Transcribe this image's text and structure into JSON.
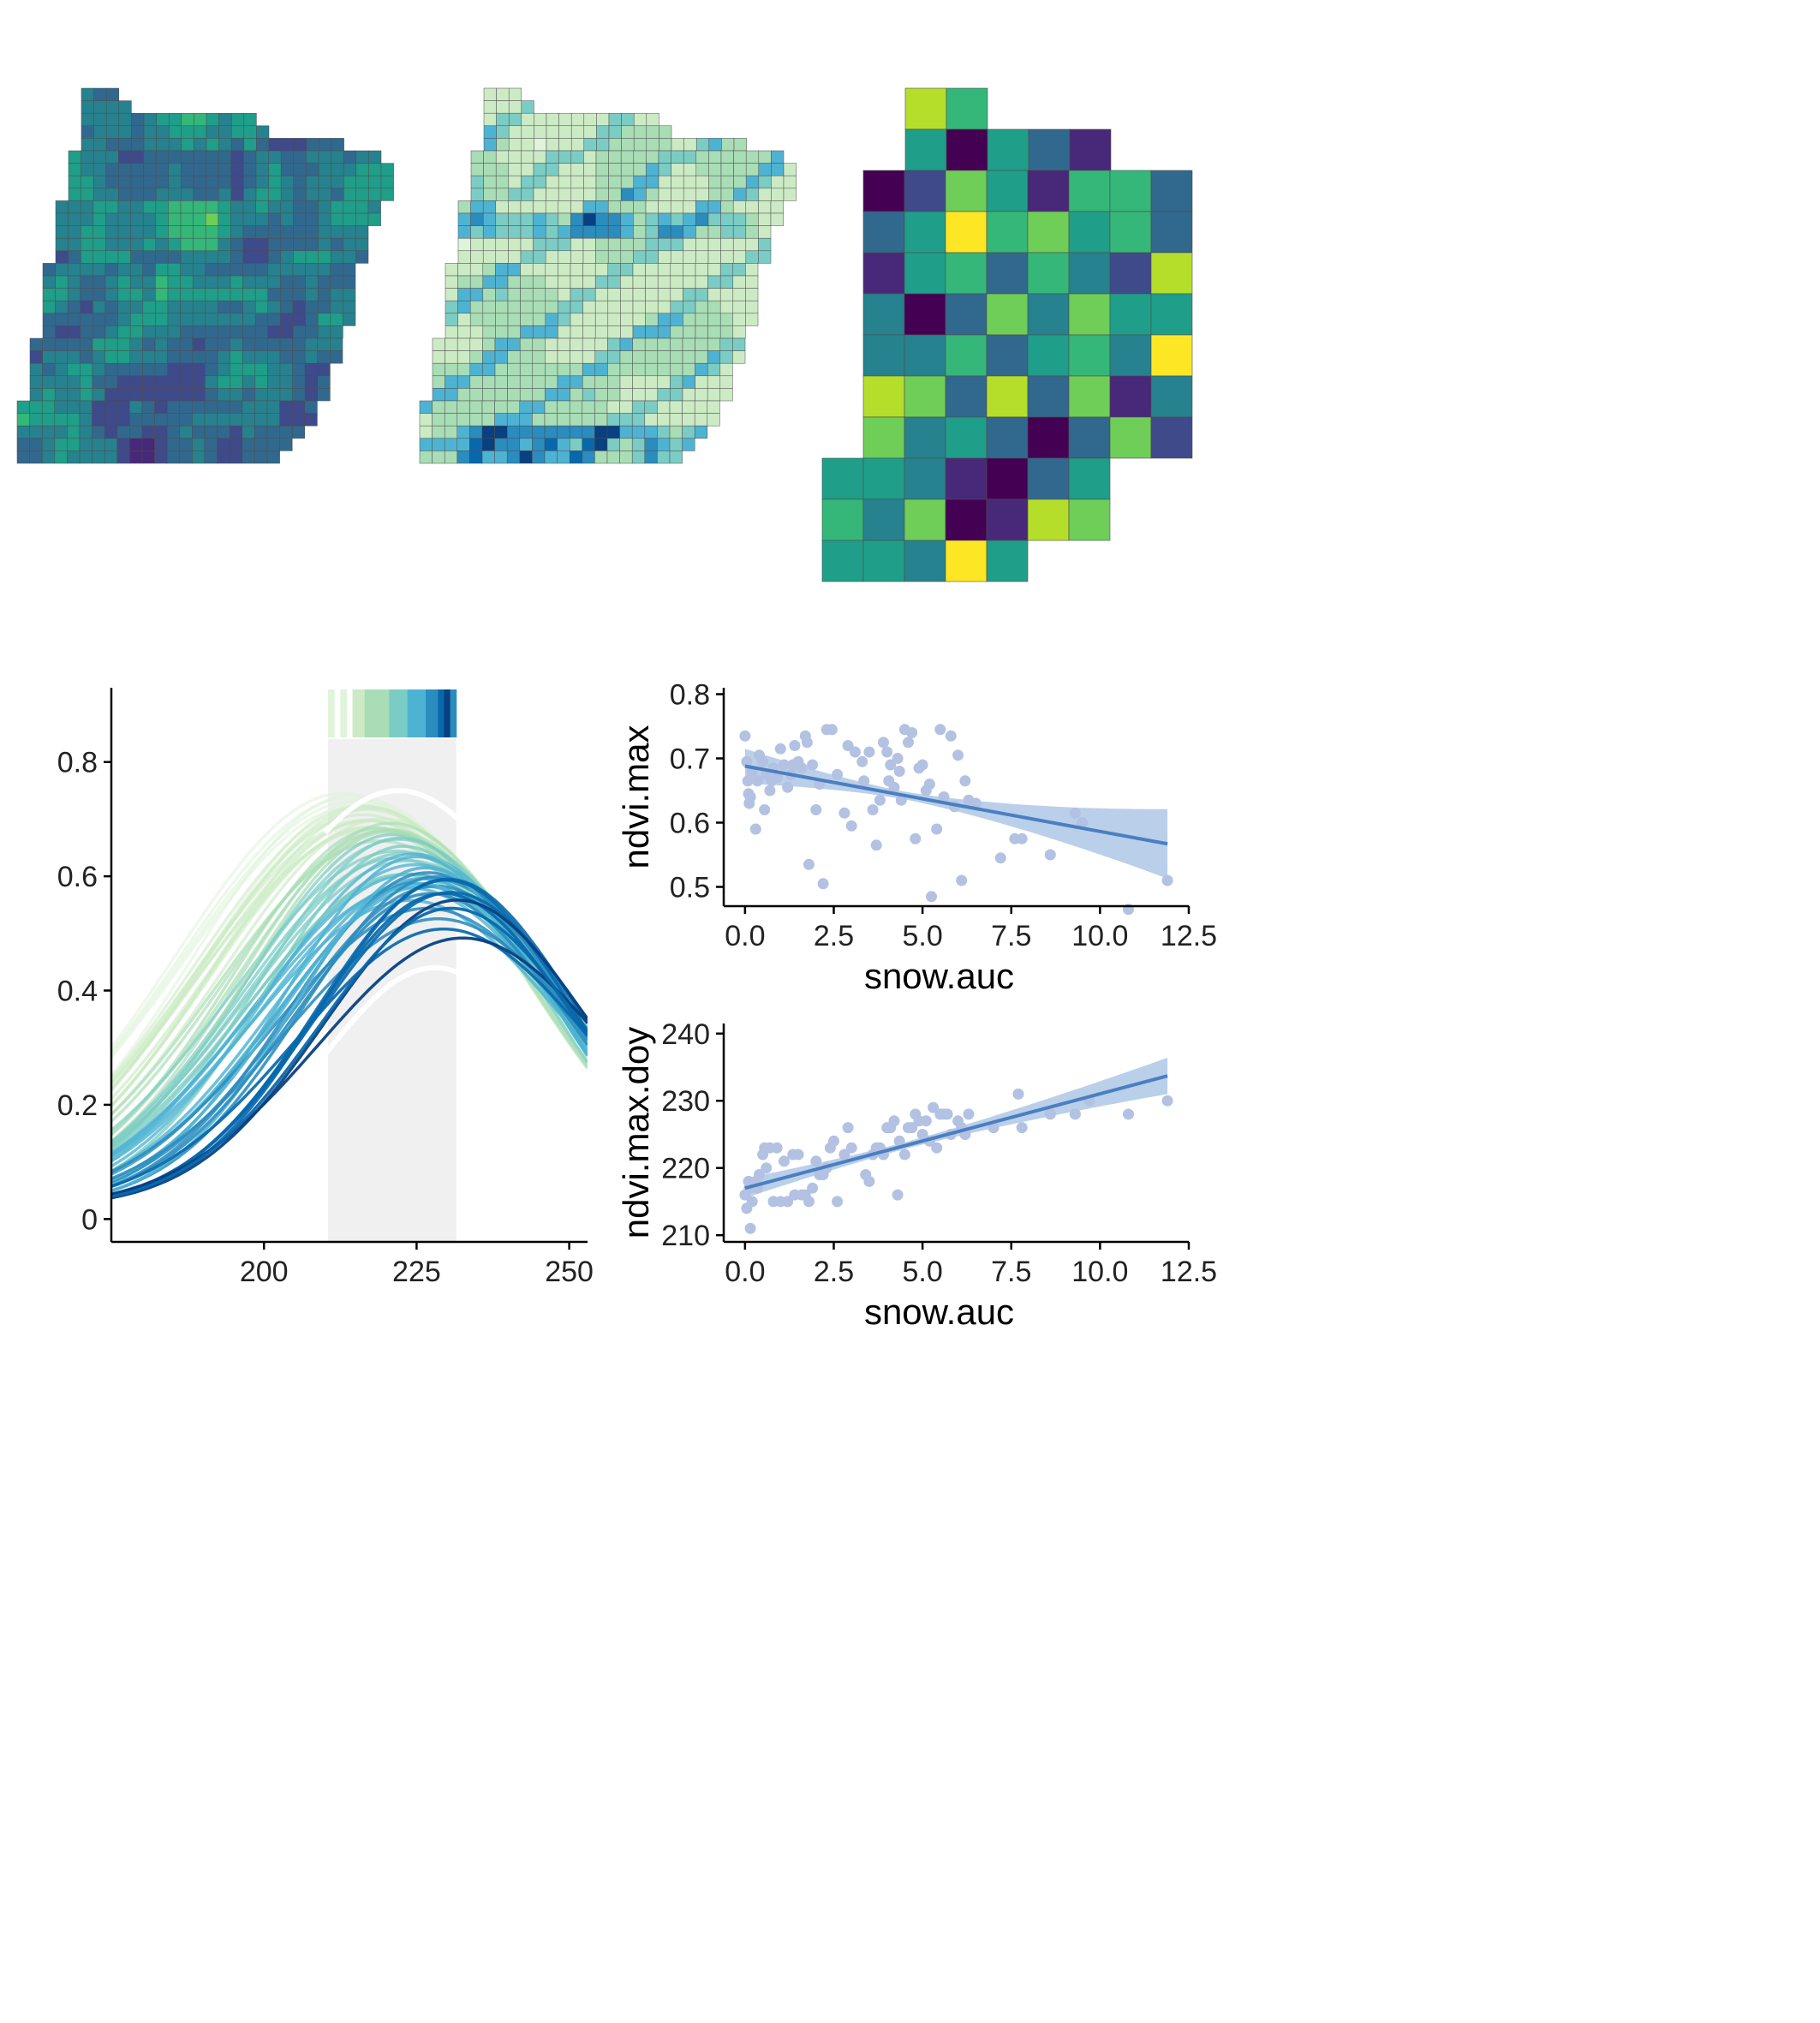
{
  "colors": {
    "viridis": [
      "#440154",
      "#482878",
      "#3e4a89",
      "#31688e",
      "#26828e",
      "#1f9e89",
      "#35b779",
      "#6ece58",
      "#b5de2b",
      "#fde725"
    ],
    "gnbu": [
      "#e0f3db",
      "#ccebc5",
      "#a8ddb5",
      "#7bccc4",
      "#4eb3d3",
      "#2b8cbe",
      "#0868ac",
      "#084081"
    ],
    "fit_line": "#4a7fc1",
    "ci_band": "#a9c3e3",
    "points": "#b3c1e2",
    "window": "#f0f0f0",
    "axis": "#000000"
  },
  "panels": {
    "map_a_label": "",
    "map_b_label": "",
    "map_c_label": ""
  },
  "chart_data": [
    {
      "type": "line",
      "panel": "ndvi-curves",
      "xlabel": "",
      "ylabel": "",
      "xlim": [
        175,
        253
      ],
      "ylim": [
        -0.04,
        0.93
      ],
      "x_ticks": [
        "200",
        "225",
        "250"
      ],
      "y_ticks": [
        "0",
        "0.2",
        "0.4",
        "0.6",
        "0.8"
      ],
      "window_x": [
        210.5,
        231.5
      ],
      "curve_family": {
        "model": "gaussian",
        "count": 60,
        "peak_range": [
          0.47,
          0.745
        ],
        "peak_doy_range": [
          214,
          231
        ],
        "note_color": "peak timing mapped to gnbu palette"
      }
    },
    {
      "type": "scatter",
      "panel": "snow-vs-max",
      "xlabel": "snow.auc",
      "ylabel": "ndvi.max",
      "xlim": [
        -0.6,
        12.5
      ],
      "ylim": [
        0.47,
        0.81
      ],
      "x_ticks": [
        "0.0",
        "2.5",
        "5.0",
        "7.5",
        "10.0",
        "12.5"
      ],
      "y_ticks": [
        "0.5",
        "0.6",
        "0.7",
        "0.8"
      ],
      "fit": {
        "x": [
          0,
          11.9
        ],
        "y": [
          0.688,
          0.567
        ]
      },
      "ci": {
        "x0_half": 0.012,
        "x1_half": 0.048
      },
      "points": [
        [
          0.0,
          0.735
        ],
        [
          0.05,
          0.695
        ],
        [
          0.08,
          0.665
        ],
        [
          0.1,
          0.645
        ],
        [
          0.12,
          0.63
        ],
        [
          0.2,
          0.68
        ],
        [
          0.3,
          0.59
        ],
        [
          0.35,
          0.665
        ],
        [
          0.4,
          0.705
        ],
        [
          0.5,
          0.695
        ],
        [
          0.55,
          0.62
        ],
        [
          0.6,
          0.675
        ],
        [
          0.7,
          0.65
        ],
        [
          0.75,
          0.665
        ],
        [
          0.8,
          0.685
        ],
        [
          1.0,
          0.715
        ],
        [
          1.1,
          0.69
        ],
        [
          1.2,
          0.655
        ],
        [
          1.3,
          0.675
        ],
        [
          1.4,
          0.72
        ],
        [
          1.5,
          0.695
        ],
        [
          1.6,
          0.685
        ],
        [
          1.7,
          0.735
        ],
        [
          1.75,
          0.725
        ],
        [
          1.8,
          0.535
        ],
        [
          1.9,
          0.69
        ],
        [
          2.0,
          0.62
        ],
        [
          2.2,
          0.505
        ],
        [
          2.3,
          0.745
        ],
        [
          2.45,
          0.745
        ],
        [
          2.6,
          0.675
        ],
        [
          2.8,
          0.615
        ],
        [
          2.9,
          0.72
        ],
        [
          3.0,
          0.595
        ],
        [
          3.1,
          0.71
        ],
        [
          3.3,
          0.695
        ],
        [
          3.5,
          0.71
        ],
        [
          3.6,
          0.62
        ],
        [
          3.7,
          0.565
        ],
        [
          3.8,
          0.635
        ],
        [
          3.9,
          0.725
        ],
        [
          4.0,
          0.71
        ],
        [
          4.1,
          0.69
        ],
        [
          4.2,
          0.655
        ],
        [
          4.3,
          0.7
        ],
        [
          4.35,
          0.68
        ],
        [
          4.4,
          0.635
        ],
        [
          4.5,
          0.745
        ],
        [
          4.6,
          0.725
        ],
        [
          4.7,
          0.74
        ],
        [
          4.8,
          0.575
        ],
        [
          4.9,
          0.685
        ],
        [
          5.0,
          0.69
        ],
        [
          5.1,
          0.65
        ],
        [
          5.25,
          0.485
        ],
        [
          5.4,
          0.59
        ],
        [
          5.5,
          0.745
        ],
        [
          5.6,
          0.64
        ],
        [
          5.8,
          0.735
        ],
        [
          5.9,
          0.625
        ],
        [
          6.0,
          0.705
        ],
        [
          6.1,
          0.51
        ],
        [
          6.2,
          0.665
        ],
        [
          6.3,
          0.635
        ],
        [
          6.5,
          0.63
        ],
        [
          7.2,
          0.545
        ],
        [
          7.6,
          0.575
        ],
        [
          7.8,
          0.575
        ],
        [
          8.6,
          0.55
        ],
        [
          9.3,
          0.615
        ],
        [
          9.5,
          0.6
        ],
        [
          10.8,
          0.465
        ],
        [
          11.9,
          0.51
        ],
        [
          0.15,
          0.64
        ],
        [
          0.9,
          0.67
        ],
        [
          1.35,
          0.69
        ],
        [
          2.1,
          0.66
        ],
        [
          3.35,
          0.665
        ],
        [
          4.05,
          0.665
        ],
        [
          5.2,
          0.66
        ]
      ]
    },
    {
      "type": "scatter",
      "panel": "snow-vs-doy",
      "xlabel": "snow.auc",
      "ylabel": "ndvi.max.doy",
      "xlim": [
        -0.6,
        12.5
      ],
      "ylim": [
        209,
        241.5
      ],
      "x_ticks": [
        "0.0",
        "2.5",
        "5.0",
        "7.5",
        "10.0",
        "12.5"
      ],
      "y_ticks": [
        "210",
        "220",
        "230",
        "240"
      ],
      "fit": {
        "x": [
          0,
          11.9
        ],
        "y": [
          217.0,
          233.7
        ]
      },
      "ci": {
        "x0_half": 1.0,
        "x1_half": 2.2
      },
      "points": [
        [
          0.0,
          216
        ],
        [
          0.05,
          214
        ],
        [
          0.1,
          218
        ],
        [
          0.12,
          217
        ],
        [
          0.15,
          211
        ],
        [
          0.2,
          215
        ],
        [
          0.3,
          218
        ],
        [
          0.4,
          219
        ],
        [
          0.5,
          222
        ],
        [
          0.55,
          223
        ],
        [
          0.6,
          220
        ],
        [
          0.7,
          223
        ],
        [
          0.8,
          215
        ],
        [
          0.9,
          223
        ],
        [
          1.0,
          215
        ],
        [
          1.1,
          221
        ],
        [
          1.2,
          215
        ],
        [
          1.35,
          222
        ],
        [
          1.4,
          216
        ],
        [
          1.5,
          222
        ],
        [
          1.6,
          216
        ],
        [
          1.7,
          216
        ],
        [
          1.8,
          215
        ],
        [
          1.9,
          217
        ],
        [
          2.0,
          221
        ],
        [
          2.2,
          219
        ],
        [
          2.3,
          220
        ],
        [
          2.4,
          223
        ],
        [
          2.5,
          224
        ],
        [
          2.6,
          215
        ],
        [
          2.8,
          222
        ],
        [
          2.9,
          226
        ],
        [
          3.0,
          223
        ],
        [
          3.4,
          219
        ],
        [
          3.5,
          218
        ],
        [
          3.6,
          222
        ],
        [
          3.7,
          223
        ],
        [
          3.8,
          223
        ],
        [
          3.9,
          222
        ],
        [
          4.0,
          226
        ],
        [
          4.1,
          226
        ],
        [
          4.2,
          227
        ],
        [
          4.3,
          216
        ],
        [
          4.35,
          224
        ],
        [
          4.5,
          222
        ],
        [
          4.6,
          226
        ],
        [
          4.7,
          226
        ],
        [
          4.8,
          228
        ],
        [
          4.9,
          227
        ],
        [
          5.0,
          225
        ],
        [
          5.1,
          227
        ],
        [
          5.2,
          224
        ],
        [
          5.3,
          229
        ],
        [
          5.4,
          223
        ],
        [
          5.5,
          228
        ],
        [
          5.6,
          228
        ],
        [
          5.7,
          228
        ],
        [
          5.8,
          225
        ],
        [
          6.0,
          227
        ],
        [
          6.1,
          226
        ],
        [
          6.2,
          225
        ],
        [
          6.3,
          228
        ],
        [
          7.0,
          226
        ],
        [
          7.7,
          231
        ],
        [
          7.8,
          226
        ],
        [
          8.6,
          228
        ],
        [
          9.3,
          228
        ],
        [
          9.7,
          230
        ],
        [
          10.8,
          228
        ],
        [
          11.9,
          230
        ],
        [
          0.35,
          217
        ],
        [
          2.1,
          219
        ]
      ]
    }
  ]
}
